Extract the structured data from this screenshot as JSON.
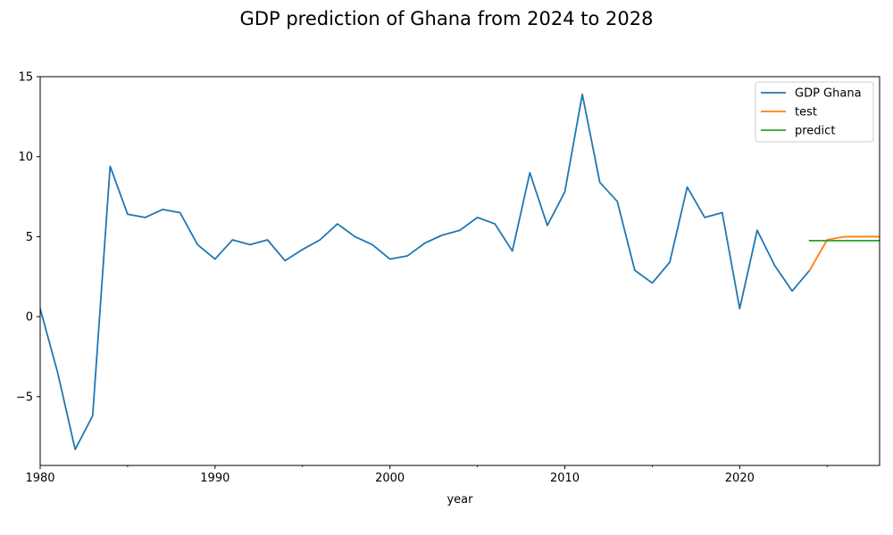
{
  "chart_data": {
    "type": "line",
    "title": "GDP prediction of Ghana from 2024 to 2028",
    "xlabel": "year",
    "ylabel": "",
    "xlim": [
      1980,
      2028
    ],
    "ylim": [
      -9.3,
      15
    ],
    "x_ticks": [
      1980,
      1990,
      2000,
      2010,
      2020
    ],
    "x_tick_labels": [
      "1980",
      "1990",
      "2000",
      "2010",
      "2020"
    ],
    "x_minor_ticks": [
      1985,
      1995,
      2005,
      2015,
      2025
    ],
    "y_ticks": [
      -5,
      0,
      5,
      10,
      15
    ],
    "y_tick_labels": [
      "−5",
      "0",
      "5",
      "10",
      "15"
    ],
    "grid": false,
    "legend_position": "top-right",
    "series": [
      {
        "name": "GDP Ghana",
        "color": "#1f77b4",
        "x": [
          1980,
          1981,
          1982,
          1983,
          1984,
          1985,
          1986,
          1987,
          1988,
          1989,
          1990,
          1991,
          1992,
          1993,
          1994,
          1995,
          1996,
          1997,
          1998,
          1999,
          2000,
          2001,
          2002,
          2003,
          2004,
          2005,
          2006,
          2007,
          2008,
          2009,
          2010,
          2011,
          2012,
          2013,
          2014,
          2015,
          2016,
          2017,
          2018,
          2019,
          2020,
          2021,
          2022,
          2023,
          2024
        ],
        "values": [
          0.5,
          -3.5,
          -8.3,
          -6.2,
          9.4,
          6.4,
          6.2,
          6.7,
          6.5,
          4.5,
          3.6,
          4.8,
          4.5,
          4.8,
          3.5,
          4.2,
          4.8,
          5.8,
          5.0,
          4.5,
          3.6,
          3.8,
          4.6,
          5.1,
          5.4,
          6.2,
          5.8,
          4.1,
          9.0,
          5.7,
          7.8,
          13.9,
          8.4,
          7.2,
          2.9,
          2.1,
          3.4,
          8.1,
          6.2,
          6.5,
          0.5,
          5.4,
          3.2,
          1.6,
          2.9
        ]
      },
      {
        "name": "test",
        "color": "#ff7f0e",
        "x": [
          2024,
          2025,
          2026,
          2027,
          2028
        ],
        "values": [
          2.9,
          4.8,
          5.0,
          5.0,
          5.0
        ]
      },
      {
        "name": "predict",
        "color": "#2ca02c",
        "x": [
          2024,
          2025,
          2026,
          2027,
          2028
        ],
        "values": [
          4.75,
          4.75,
          4.75,
          4.75,
          4.75
        ]
      }
    ]
  }
}
